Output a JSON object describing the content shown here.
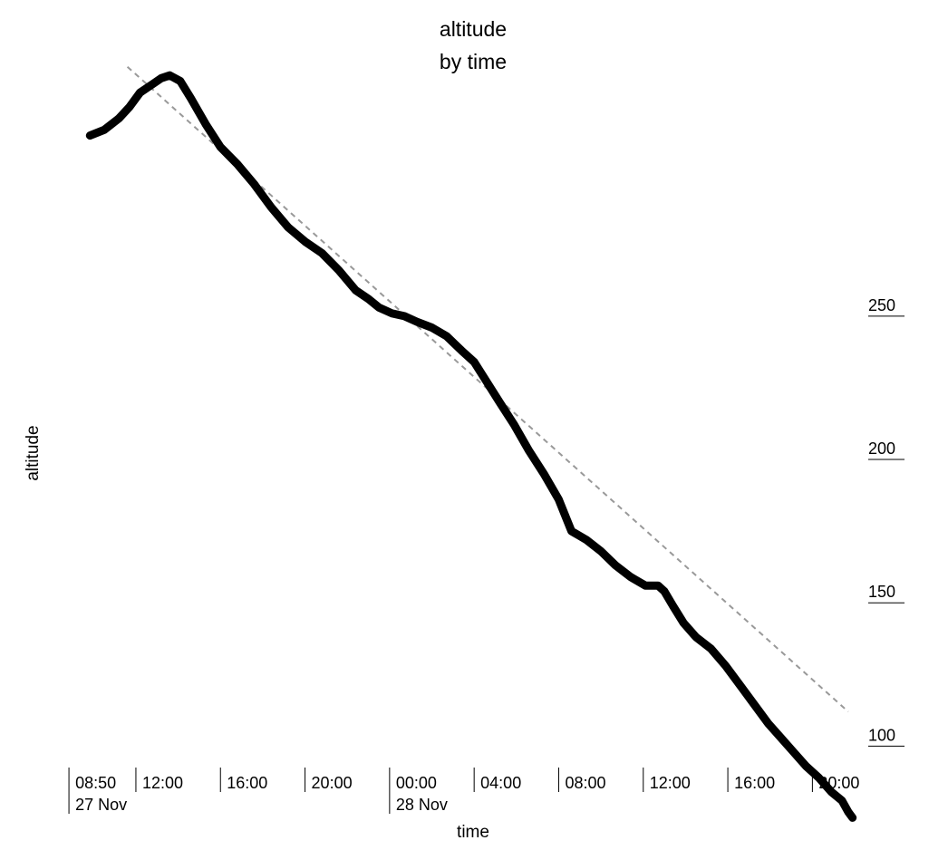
{
  "chart_data": {
    "type": "line",
    "title": "altitude",
    "subtitle": "by time",
    "xlabel": "time",
    "ylabel": "altitude",
    "ylim": [
      90,
      335
    ],
    "xlim_hours": [
      8.83,
      46.17
    ],
    "y_ticks": [
      100,
      150,
      200,
      250
    ],
    "x_ticks": [
      {
        "hour": 8.833,
        "label": "08:50",
        "sublabel": "27 Nov"
      },
      {
        "hour": 12,
        "label": "12:00",
        "sublabel": ""
      },
      {
        "hour": 16,
        "label": "16:00",
        "sublabel": ""
      },
      {
        "hour": 20,
        "label": "20:00",
        "sublabel": ""
      },
      {
        "hour": 24,
        "label": "00:00",
        "sublabel": "28 Nov"
      },
      {
        "hour": 28,
        "label": "04:00",
        "sublabel": ""
      },
      {
        "hour": 32,
        "label": "08:00",
        "sublabel": ""
      },
      {
        "hour": 36,
        "label": "12:00",
        "sublabel": ""
      },
      {
        "hour": 40,
        "label": "16:00",
        "sublabel": ""
      },
      {
        "hour": 44,
        "label": "20:00",
        "sublabel": ""
      }
    ],
    "series": [
      {
        "x_hours": [
          9.83,
          10.5,
          11.2,
          11.7,
          12.2,
          12.8,
          13.2,
          13.6,
          14.1,
          14.6,
          15.3,
          16.0,
          16.8,
          17.6,
          18.4,
          19.2,
          20.0,
          20.8,
          21.6,
          22.4,
          23.0,
          23.5,
          24.1,
          24.7,
          25.3,
          26.0,
          26.7,
          27.4,
          28.0,
          28.6,
          29.2,
          29.9,
          30.6,
          31.3,
          32.0,
          32.6,
          33.3,
          34.0,
          34.7,
          35.4,
          36.1,
          36.7,
          37.0,
          37.4,
          37.9,
          38.5,
          39.2,
          39.9,
          40.6,
          41.3,
          41.9,
          42.5,
          43.1,
          43.7,
          44.3,
          44.9,
          45.4,
          45.7,
          45.9
        ],
        "y": [
          313,
          315,
          319,
          323,
          328,
          331,
          333,
          334,
          332,
          326,
          317,
          309,
          303,
          296,
          288,
          281,
          276,
          272,
          266,
          259,
          256,
          253,
          251,
          250,
          248,
          246,
          243,
          238,
          234,
          227,
          220,
          212,
          203,
          195,
          186,
          175,
          172,
          168,
          163,
          159,
          156,
          156,
          154,
          149,
          143,
          138,
          134,
          128,
          121,
          114,
          108,
          103,
          98,
          93,
          89,
          84,
          81,
          77,
          75
        ]
      },
      {
        "x_hours": [
          11.6,
          45.7
        ],
        "y": [
          337,
          112
        ]
      }
    ]
  }
}
